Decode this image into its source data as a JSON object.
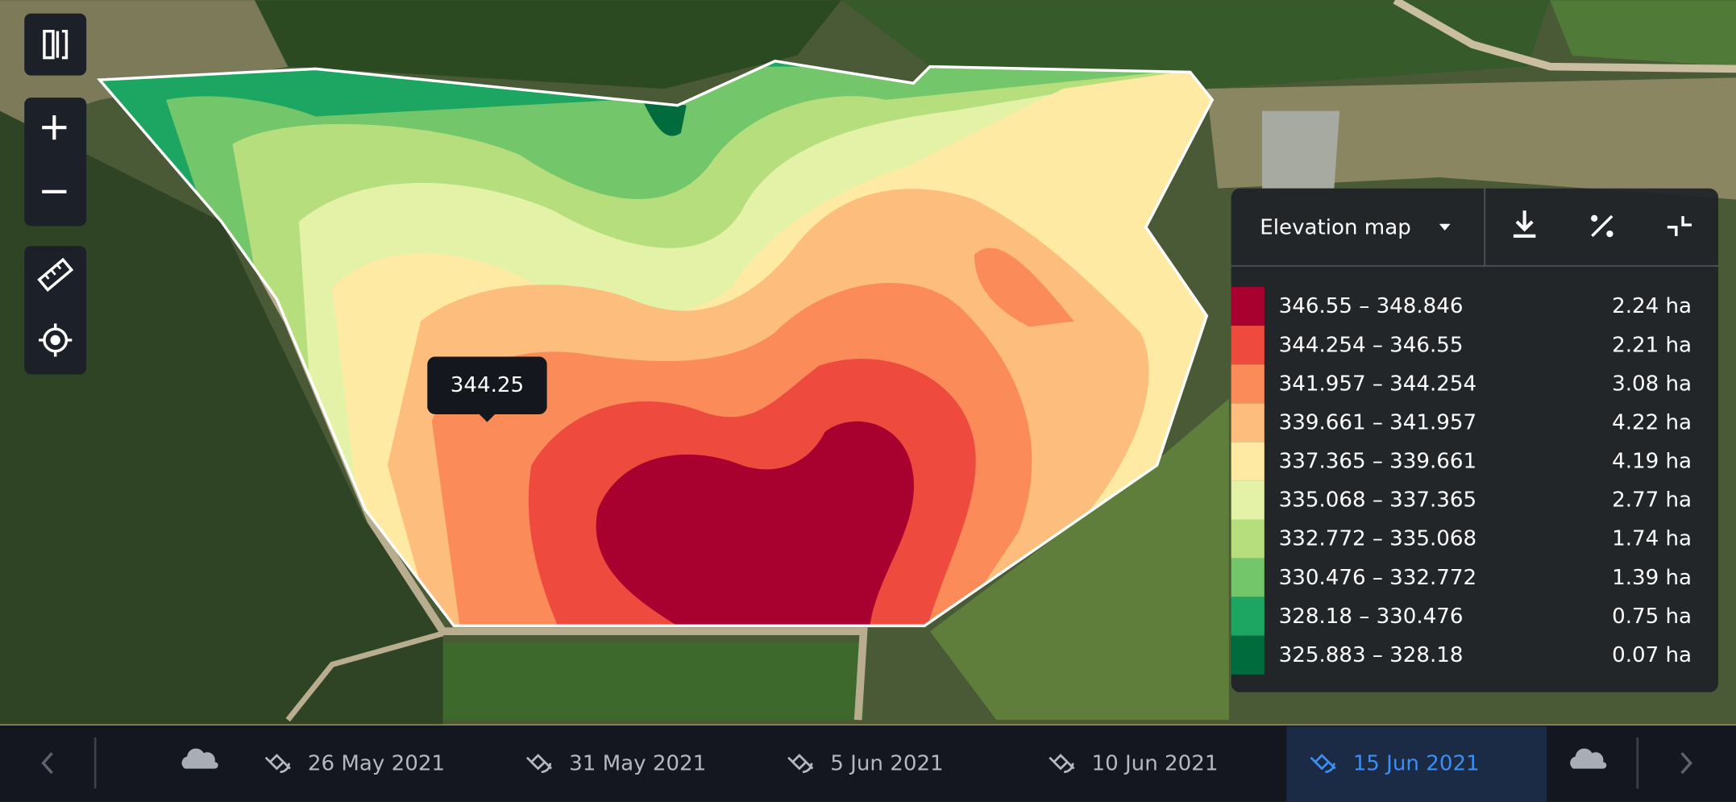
{
  "tooltip": "344.25",
  "legend": {
    "title": "Elevation map",
    "items": [
      {
        "range": "346.55 – 348.846",
        "area": "2.24 ha",
        "color": "#a8002f"
      },
      {
        "range": "344.254 – 346.55",
        "area": "2.21 ha",
        "color": "#ee4a3d"
      },
      {
        "range": "341.957 – 344.254",
        "area": "3.08 ha",
        "color": "#fb8b58"
      },
      {
        "range": "339.661 – 341.957",
        "area": "4.22 ha",
        "color": "#fdbd7d"
      },
      {
        "range": "337.365 – 339.661",
        "area": "4.19 ha",
        "color": "#feeaa2"
      },
      {
        "range": "335.068 – 337.365",
        "area": "2.77 ha",
        "color": "#e4f2a8"
      },
      {
        "range": "332.772 – 335.068",
        "area": "1.74 ha",
        "color": "#b6de7c"
      },
      {
        "range": "330.476 – 332.772",
        "area": "1.39 ha",
        "color": "#74c66a"
      },
      {
        "range": "328.18 – 330.476",
        "area": "0.75 ha",
        "color": "#1ca661"
      },
      {
        "range": "325.883 – 328.18",
        "area": "0.07 ha",
        "color": "#006b3d"
      }
    ]
  },
  "timeline": {
    "dates": [
      "26 May 2021",
      "31 May 2021",
      "5 Jun 2021",
      "10 Jun 2021",
      "15 Jun 2021"
    ],
    "selected": 4
  }
}
